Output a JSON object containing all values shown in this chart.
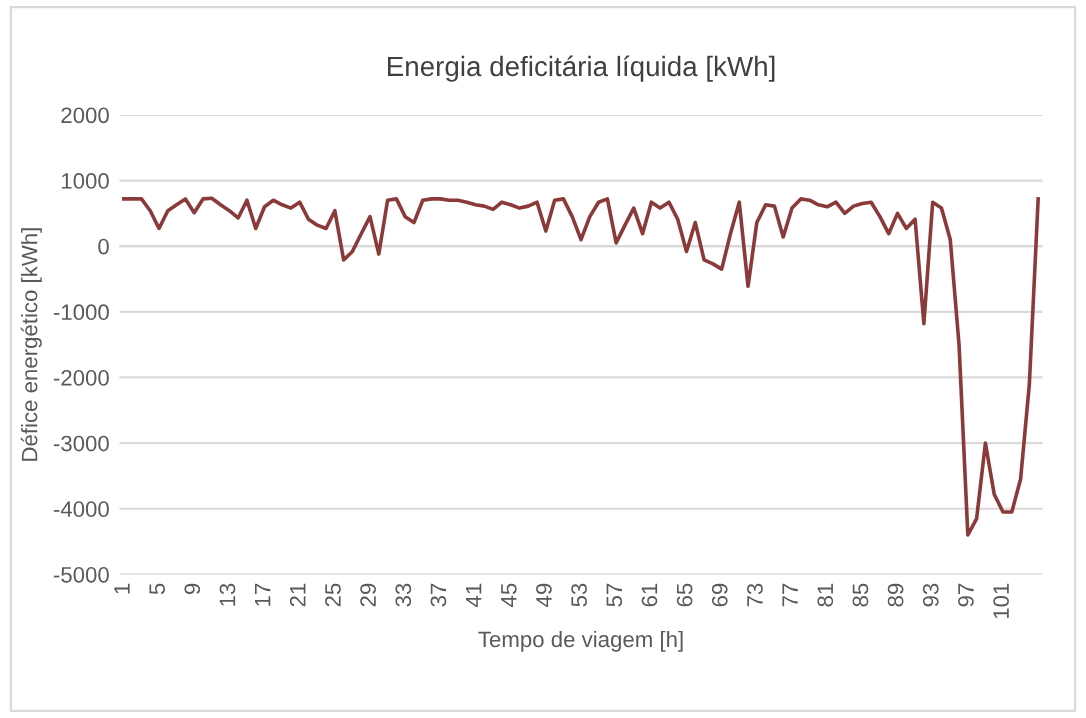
{
  "chart_data": {
    "type": "line",
    "title": "Energia deficitária líquida [kWh]",
    "xlabel": "Tempo de viagem [h]",
    "ylabel": "Défice energético [kWh]",
    "categories": [
      "1",
      null,
      null,
      null,
      "5",
      null,
      null,
      null,
      "9",
      null,
      null,
      null,
      "13",
      null,
      null,
      null,
      "17",
      null,
      null,
      null,
      "21",
      null,
      null,
      null,
      "25",
      null,
      null,
      null,
      "29",
      null,
      null,
      null,
      "33",
      null,
      null,
      null,
      "37",
      null,
      null,
      null,
      "41",
      null,
      null,
      null,
      "45",
      null,
      null,
      null,
      "49",
      null,
      null,
      null,
      "53",
      null,
      null,
      null,
      "57",
      null,
      null,
      null,
      "61",
      null,
      null,
      null,
      "65",
      null,
      null,
      null,
      "69",
      null,
      null,
      null,
      "73",
      null,
      null,
      null,
      "77",
      null,
      null,
      null,
      "81",
      null,
      null,
      null,
      "85",
      null,
      null,
      null,
      "89",
      null,
      null,
      null,
      "93",
      null,
      null,
      null,
      "97",
      null,
      null,
      null,
      "101",
      null,
      null,
      null,
      null
    ],
    "series": [
      {
        "color": "#8b3a3a",
        "values": [
          720,
          720,
          720,
          540,
          270,
          540,
          630,
          720,
          510,
          720,
          730,
          630,
          540,
          430,
          700,
          270,
          600,
          700,
          630,
          580,
          670,
          410,
          320,
          270,
          540,
          -210,
          -80,
          190,
          450,
          -120,
          700,
          720,
          450,
          360,
          700,
          720,
          720,
          700,
          700,
          670,
          630,
          610,
          560,
          670,
          630,
          580,
          610,
          670,
          230,
          700,
          720,
          450,
          100,
          450,
          670,
          720,
          50,
          320,
          580,
          190,
          670,
          580,
          670,
          410,
          -80,
          360,
          -210,
          -270,
          -350,
          190,
          670,
          -610,
          360,
          630,
          610,
          140,
          580,
          720,
          700,
          630,
          600,
          670,
          500,
          610,
          650,
          670,
          450,
          190,
          500,
          270,
          410,
          -1180,
          670,
          580,
          100,
          -1500,
          -4400,
          -4150,
          -3000,
          -3780,
          -4050,
          -4050,
          -3550,
          -2100,
          720
        ]
      }
    ],
    "ylim": [
      -5000,
      2000
    ],
    "yticks": [
      -5000,
      -4000,
      -3000,
      -2000,
      -1000,
      0,
      1000,
      2000
    ],
    "grid": "y",
    "legend": false,
    "marker": "none",
    "line_style": "solid"
  }
}
